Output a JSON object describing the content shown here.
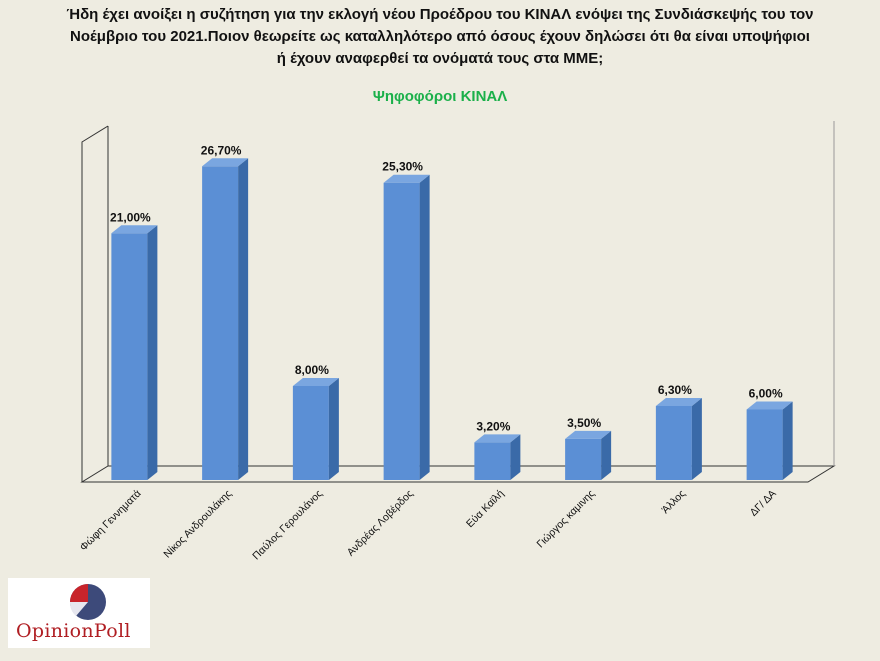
{
  "title_lines": [
    "Ήδη έχει ανοίξει η συζήτηση για την εκλογή νέου Προέδρου του ΚΙΝΑΛ ενόψει της Συνδιάσκεψής του τον",
    "Νοέμβριο του 2021.Ποιον θεωρείτε ως καταλληλότερο από όσους  έχουν δηλώσει ότι θα είναι υποψήφιοι",
    "ή έχουν αναφερθεί τα ονόματά τους  στα ΜΜΕ;"
  ],
  "subtitle": "Ψηφοφόροι ΚΙΝΑΛ",
  "logo": {
    "brand": "OpinionPoll"
  },
  "colors": {
    "bar": "#5b8fd5",
    "bar_top": "#7aa6e0",
    "bar_side": "#3a6aa8",
    "subtitle": "#1bb04a"
  },
  "chart_data": {
    "type": "bar",
    "categories": [
      "Φώφη Γεννηματά",
      "Νίκος Ανδρουλάκης",
      "Παύλος Γερουλάνος",
      "Ανδρέας Λοβέρδος",
      "Εύα Καϊλή",
      "Γιώργος καμινης",
      "Άλλος",
      "ΔΓ/ ΔΑ"
    ],
    "values": [
      21.0,
      26.7,
      8.0,
      25.3,
      3.2,
      3.5,
      6.3,
      6.0
    ],
    "labels": [
      "21,00%",
      "26,70%",
      "8,00%",
      "25,30%",
      "3,20%",
      "3,50%",
      "6,30%",
      "6,00%"
    ],
    "ylim": [
      0,
      30
    ],
    "title": "Ψηφοφόροι ΚΙΝΑΛ",
    "xlabel": "",
    "ylabel": ""
  }
}
